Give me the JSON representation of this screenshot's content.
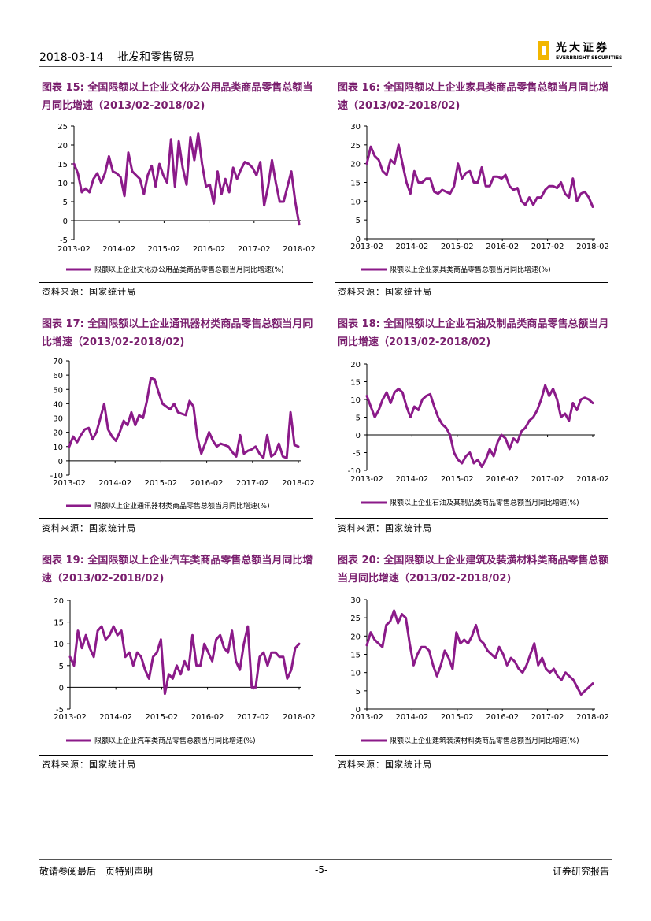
{
  "header": {
    "date_section": "2018-03-14    批发和零售贸易",
    "logo_cn": "光大证券",
    "logo_en": "EVERBRIGHT SECURITIES"
  },
  "footer": {
    "left": "敬请参阅最后一页特别声明",
    "center": "-5-",
    "right": "证券研究报告"
  },
  "colors": {
    "line": "#8b1a89",
    "title": "#7a1f6e"
  },
  "figures": [
    {
      "title": "图表 15: 全国限额以上企业文化办公用品类商品零售总额当月同比增速（2013/02-2018/02)",
      "source": "资料来源：国家统计局",
      "chart_data": {
        "type": "line",
        "xlabels": [
          "2013-02",
          "2014-02",
          "2015-02",
          "2016-02",
          "2017-02",
          "2018-02"
        ],
        "yticks": [
          "25",
          "20",
          "15",
          "10",
          "5",
          "0",
          "-5"
        ],
        "ylim": [
          -5,
          25
        ],
        "legend": "限额以上企业文化办公用品类商品零售总额当月同比增速(%)",
        "values": [
          15,
          12.5,
          7.5,
          8.5,
          7.5,
          11,
          12.5,
          10,
          12.5,
          17,
          13,
          12.5,
          11.5,
          6.5,
          18,
          13,
          12,
          11,
          7,
          12,
          14.5,
          9,
          15,
          12,
          10,
          21.5,
          9,
          21,
          14,
          9.5,
          22,
          16,
          23,
          15,
          9,
          9.5,
          4.5,
          13,
          7,
          11,
          7.5,
          14,
          11,
          13.5,
          15.5,
          15,
          14,
          12,
          15.5,
          4,
          9,
          16,
          10,
          5,
          5,
          9,
          13,
          5,
          -1
        ]
      }
    },
    {
      "title": "图表 16: 全国限额以上企业家具类商品零售总额当月同比增速（2013/02-2018/02)",
      "source": "资料来源：国家统计局",
      "chart_data": {
        "type": "line",
        "xlabels": [
          "2013-02",
          "2014-02",
          "2015-02",
          "2016-02",
          "2017-02",
          "2018-02"
        ],
        "yticks": [
          "30",
          "25",
          "20",
          "15",
          "10",
          "5",
          "0"
        ],
        "ylim": [
          0,
          30
        ],
        "legend": "限额以上企业家具类商品零售总额当月同比增速(%)",
        "values": [
          20,
          24.5,
          22,
          21,
          18,
          17,
          21,
          20,
          25,
          20,
          15,
          12,
          18,
          15,
          15,
          16,
          16,
          12.5,
          12,
          13,
          12.5,
          12,
          14,
          20,
          16,
          17.5,
          18,
          15,
          15,
          19,
          14,
          14,
          16.5,
          16.5,
          16,
          17,
          14,
          13,
          13.5,
          10,
          9,
          11,
          9,
          11,
          11,
          13,
          14,
          14,
          13.5,
          15,
          12,
          11,
          16,
          10,
          12,
          12.5,
          11,
          8.5
        ]
      }
    },
    {
      "title": "图表 17: 全国限额以上企业通讯器材类商品零售总额当月同比增速（2013/02-2018/02)",
      "source": "资料来源：国家统计局",
      "chart_data": {
        "type": "line",
        "xlabels": [
          "2013-02",
          "2014-02",
          "2015-02",
          "2016-02",
          "2017-02",
          "2018-02"
        ],
        "yticks": [
          "70",
          "60",
          "50",
          "40",
          "30",
          "20",
          "10",
          "0",
          "-10"
        ],
        "ylim": [
          -10,
          70
        ],
        "legend": "限额以上企业通讯器材类商品零售总额当月同比增速(%)",
        "values": [
          10,
          17,
          13,
          18,
          22,
          23,
          15,
          20,
          30,
          40,
          22,
          17,
          14,
          20,
          28,
          25,
          34,
          25,
          32,
          30,
          42,
          58,
          57,
          48,
          40,
          38,
          36,
          40,
          34,
          33,
          32,
          42,
          38,
          16,
          5,
          12,
          20,
          14,
          10,
          12,
          11,
          10,
          6,
          3,
          18,
          5,
          7,
          8,
          10,
          5,
          2,
          18,
          3,
          5,
          12,
          3,
          2,
          34,
          11,
          10
        ]
      }
    },
    {
      "title": "图表 18: 全国限额以上企业石油及制品类商品零售总额当月同比增速（2013/02-2018/02)",
      "source": "资料来源：国家统计局",
      "chart_data": {
        "type": "line",
        "xlabels": [
          "2013-02",
          "2014-02",
          "2015-02",
          "2016-02",
          "2017-02",
          "2018-02"
        ],
        "yticks": [
          "20",
          "15",
          "10",
          "5",
          "0",
          "-5",
          "-10"
        ],
        "ylim": [
          -10,
          20
        ],
        "legend": "限额以上企业石油及其制品类商品零售总额当月同比增速(%)",
        "values": [
          11,
          8,
          5,
          7,
          10,
          12,
          9,
          12,
          13,
          12,
          8,
          5,
          8,
          7,
          10,
          11,
          11.5,
          8,
          5,
          3,
          2,
          0,
          -5,
          -7,
          -8,
          -6,
          -5,
          -8,
          -7,
          -9,
          -7,
          -4,
          -6,
          -2,
          0,
          -1,
          -4,
          -1,
          -2,
          1,
          2,
          4,
          5,
          7,
          10,
          14,
          11,
          13,
          10,
          5,
          6,
          4,
          9,
          7,
          10,
          10.5,
          10,
          9
        ]
      }
    },
    {
      "title": "图表 19: 全国限额以上企业汽车类商品零售总额当月同比增速（2013/02-2018/02)",
      "source": "资料来源：国家统计局",
      "chart_data": {
        "type": "line",
        "xlabels": [
          "2013-02",
          "2014-02",
          "2015-02",
          "2016-02",
          "2017-02",
          "2018-02"
        ],
        "yticks": [
          "20",
          "15",
          "10",
          "5",
          "0",
          "-5"
        ],
        "ylim": [
          -5,
          20
        ],
        "legend": "限额以上企业汽车类商品零售总额当月同比增速(%)",
        "values": [
          7,
          5,
          13,
          9,
          12,
          9,
          7,
          13,
          14,
          11,
          12,
          14,
          12,
          13,
          7,
          8,
          5,
          8,
          7,
          4,
          2,
          7,
          8,
          11,
          -1.5,
          3,
          2,
          5,
          3,
          6,
          4,
          12,
          5,
          5,
          10,
          8,
          6,
          11,
          12,
          9,
          8,
          13,
          6,
          4,
          10,
          14,
          0,
          0,
          7,
          8,
          5,
          8,
          8,
          7,
          7,
          2,
          4,
          9,
          10
        ]
      }
    },
    {
      "title": "图表 20: 全国限额以上企业建筑及装潢材料类商品零售总额当月同比增速（2013/02-2018/02)",
      "source": "资料来源：国家统计局",
      "chart_data": {
        "type": "line",
        "xlabels": [
          "2013-02",
          "2014-02",
          "2015-02",
          "2016-02",
          "2017-02",
          "2018-02"
        ],
        "yticks": [
          "30",
          "25",
          "20",
          "15",
          "10",
          "5",
          "0"
        ],
        "ylim": [
          0,
          30
        ],
        "legend": "限额以上企业建筑装潢材料类商品零售总额当月同比增速(%)",
        "values": [
          17.5,
          21,
          19,
          18,
          17,
          23,
          24,
          27,
          23.5,
          26,
          25,
          18,
          12,
          15,
          17,
          17,
          16,
          12,
          9,
          12,
          16,
          14,
          11,
          21,
          18,
          19,
          18,
          20,
          23,
          19,
          18,
          16,
          15,
          14,
          17,
          15,
          12,
          14,
          13,
          11,
          10,
          12,
          15,
          18,
          12,
          14,
          11,
          10,
          11,
          9,
          8,
          10,
          9,
          8,
          6,
          4,
          5,
          6,
          7
        ]
      }
    }
  ]
}
